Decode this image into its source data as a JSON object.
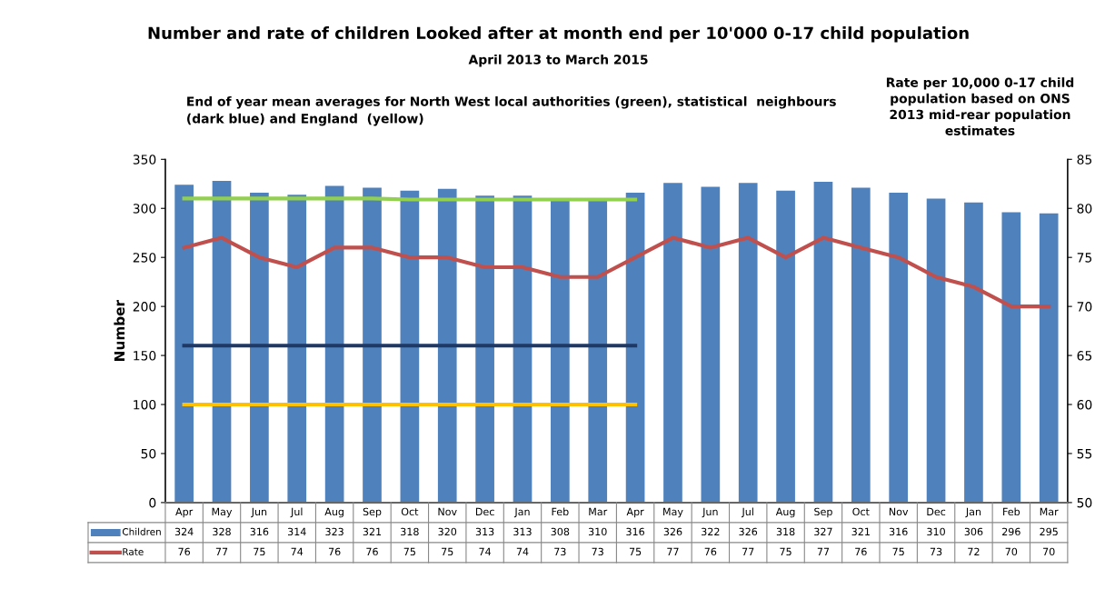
{
  "chart_data": {
    "type": "bar",
    "title": "Number and rate of children Looked after at month end per 10'000 0-17 child population",
    "subtitle": "April 2013 to March 2015",
    "ylabel": "Number",
    "annotations": [
      "End of year mean averages for North West local authorities (green), statistical  neighbours\n(dark blue) and England  (yellow)",
      "Rate per 10,000 0-17 child\npopulation based on ONS\n2013 mid-rear population\nestimates"
    ],
    "categories": [
      "Apr",
      "May",
      "Jun",
      "Jul",
      "Aug",
      "Sep",
      "Oct",
      "Nov",
      "Dec",
      "Jan",
      "Feb",
      "Mar",
      "Apr",
      "May",
      "Jun",
      "Jul",
      "Aug",
      "Sep",
      "Oct",
      "Nov",
      "Dec",
      "Jan",
      "Feb",
      "Mar"
    ],
    "series": [
      {
        "name": "Children",
        "color": "#4f81bd",
        "values": [
          324,
          328,
          316,
          314,
          323,
          321,
          318,
          320,
          313,
          313,
          308,
          310,
          316,
          326,
          322,
          326,
          318,
          327,
          321,
          316,
          310,
          306,
          296,
          295
        ],
        "value_labels": [
          "324",
          "328",
          "316",
          "314",
          "323",
          "321",
          "318",
          "320",
          "313",
          "313",
          "308",
          "310",
          "316",
          "326",
          "322",
          "326",
          "318",
          "327",
          "321",
          "316",
          "310",
          "306",
          "296",
          "295"
        ]
      },
      {
        "name": "Rate",
        "type": "line",
        "axis": "y2",
        "color": "#c0504d",
        "values": [
          76,
          77,
          75,
          74,
          76,
          76,
          75,
          75,
          74,
          74,
          73,
          73,
          75,
          77,
          76,
          77,
          75,
          77,
          76,
          75,
          73,
          72,
          70,
          70
        ],
        "value_labels": [
          "76",
          "77",
          "75",
          "74",
          "76",
          "76",
          "75",
          "75",
          "74",
          "74",
          "73",
          "73",
          "75",
          "77",
          "76",
          "77",
          "75",
          "77",
          "76",
          "75",
          "73",
          "72",
          "70",
          "70"
        ]
      },
      {
        "type": "line",
        "color": "#92d050",
        "values": [
          310,
          310,
          310,
          310,
          310,
          310,
          309,
          309,
          309,
          309,
          309,
          309,
          309,
          null,
          null,
          null,
          null,
          null,
          null,
          null,
          null,
          null,
          null,
          null
        ]
      },
      {
        "type": "line",
        "color": "#1f3864",
        "values": [
          160,
          160,
          160,
          160,
          160,
          160,
          160,
          160,
          160,
          160,
          160,
          160,
          160,
          null,
          null,
          null,
          null,
          null,
          null,
          null,
          null,
          null,
          null,
          null
        ]
      },
      {
        "type": "line",
        "color": "#ffc000",
        "values": [
          100,
          100,
          100,
          100,
          100,
          100,
          100,
          100,
          100,
          100,
          100,
          100,
          100,
          null,
          null,
          null,
          null,
          null,
          null,
          null,
          null,
          null,
          null,
          null
        ]
      }
    ],
    "ylim": [
      0,
      350
    ],
    "yticks": [
      0,
      50,
      100,
      150,
      200,
      250,
      300,
      350
    ],
    "y2lim": [
      50,
      85
    ],
    "y2ticks": [
      50,
      55,
      60,
      65,
      70,
      75,
      80,
      85
    ],
    "grid": false,
    "legend": "bottom"
  }
}
